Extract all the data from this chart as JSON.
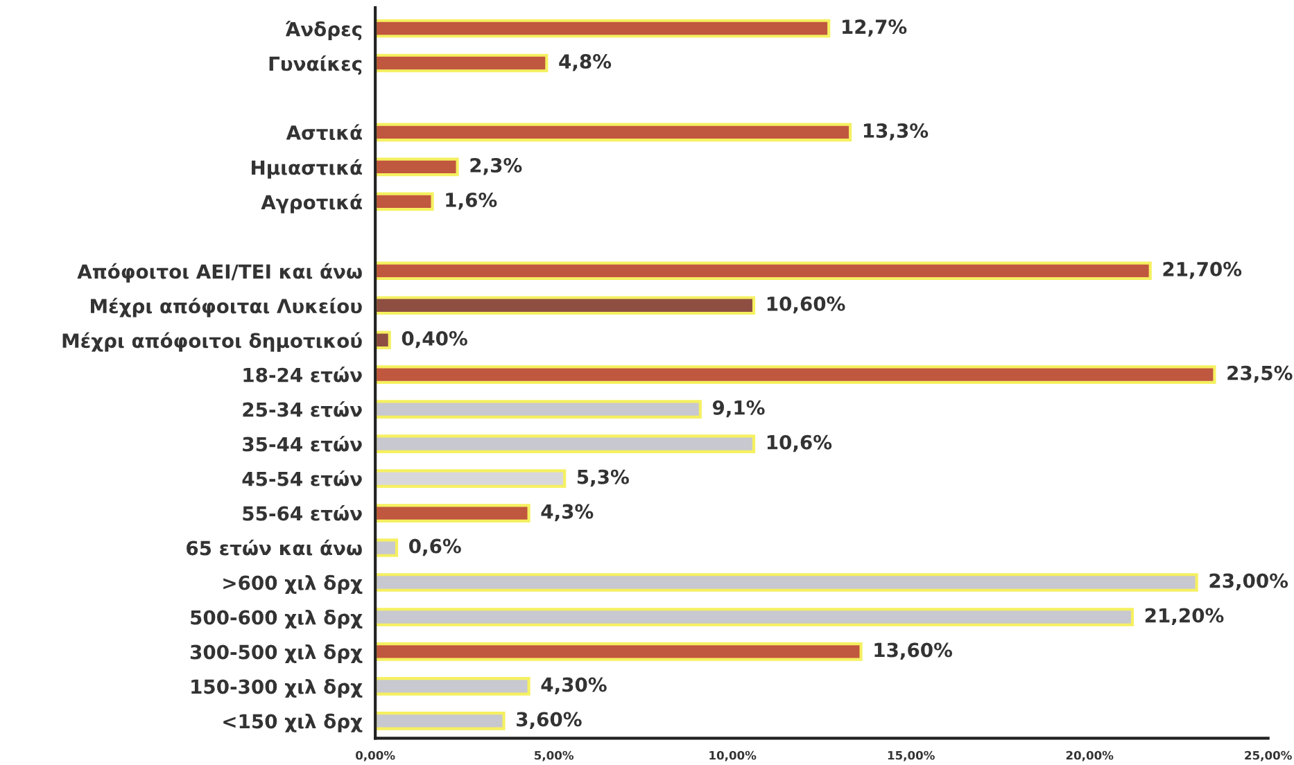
{
  "chart_data": {
    "type": "bar",
    "orientation": "horizontal",
    "categories": [
      "Άνδρες",
      "Γυναίκες",
      null,
      "Αστικά",
      "Ημιαστικά",
      "Αγροτικά",
      null,
      "Απόφοιτοι ΑΕΙ/ΤΕΙ και άνω",
      "Μέχρι απόφοιται Λυκείου",
      "Μέχρι απόφοιτοι δημοτικού",
      "18-24 ετών",
      "25-34 ετών",
      "35-44 ετών",
      "45-54 ετών",
      "55-64 ετών",
      "65 ετών και άνω",
      ">600 χιλ δρχ",
      "500-600 χιλ δρχ",
      "300-500 χιλ δρχ",
      "150-300 χιλ δρχ",
      "<150 χιλ δρχ"
    ],
    "values": [
      12.7,
      4.8,
      null,
      13.3,
      2.3,
      1.6,
      null,
      21.7,
      10.6,
      0.4,
      23.5,
      9.1,
      10.6,
      5.3,
      4.3,
      0.6,
      23.0,
      21.2,
      13.6,
      4.3,
      3.6
    ],
    "value_labels": [
      "12,7%",
      "4,8%",
      null,
      "13,3%",
      "2,3%",
      "1,6%",
      null,
      "21,70%",
      "10,60%",
      "0,40%",
      "23,5%",
      "9,1%",
      "10,6%",
      "5,3%",
      "4,3%",
      "0,6%",
      "23,00%",
      "21,20%",
      "13,60%",
      "4,30%",
      "3,60%"
    ],
    "colors": [
      "#c0573f",
      "#c0573f",
      null,
      "#c0573f",
      "#c0573f",
      "#c0573f",
      null,
      "#c0573f",
      "#8e4e42",
      "#8e4e42",
      "#c0573f",
      "#c8c8d0",
      "#c8c8d0",
      "#d8d8dc",
      "#c0573f",
      "#c8c8d0",
      "#c8c8d0",
      "#c8c8d0",
      "#c0573f",
      "#c8c8d0",
      "#c8c8d0"
    ],
    "xlim": [
      0,
      25
    ],
    "xticks": [
      {
        "value": 0,
        "label": "0,00%"
      },
      {
        "value": 5,
        "label": "5,00%"
      },
      {
        "value": 10,
        "label": "10,00%"
      },
      {
        "value": 15,
        "label": "15,00%"
      },
      {
        "value": 20,
        "label": "20,00%"
      },
      {
        "value": 25,
        "label": "25,00%"
      }
    ],
    "grid": false,
    "legend": false
  }
}
